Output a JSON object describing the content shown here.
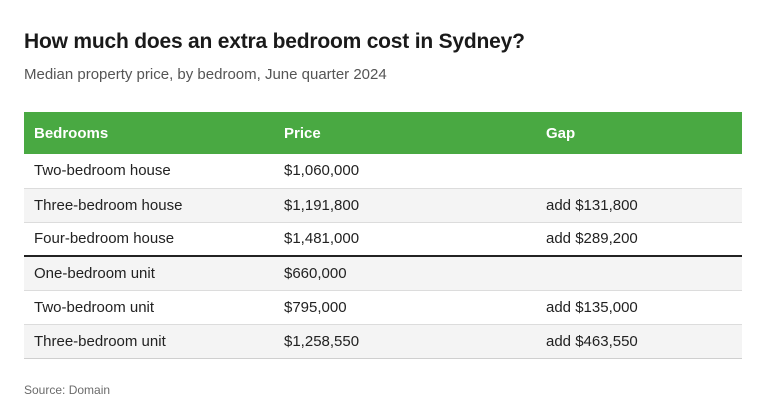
{
  "header": {
    "title": "How much does an extra bedroom cost in Sydney?",
    "subtitle": "Median property price, by bedroom, June quarter 2024"
  },
  "table": {
    "columns": [
      "Bedrooms",
      "Price",
      "Gap"
    ],
    "rows": [
      {
        "bedrooms": "Two-bedroom house",
        "price": "$1,060,000",
        "gap": ""
      },
      {
        "bedrooms": "Three-bedroom house",
        "price": "$1,191,800",
        "gap": "add $131,800"
      },
      {
        "bedrooms": "Four-bedroom house",
        "price": "$1,481,000",
        "gap": "add $289,200"
      },
      {
        "bedrooms": "One-bedroom unit",
        "price": "$660,000",
        "gap": ""
      },
      {
        "bedrooms": "Two-bedroom unit",
        "price": "$795,000",
        "gap": "add $135,000"
      },
      {
        "bedrooms": "Three-bedroom unit",
        "price": "$1,258,550",
        "gap": "add $463,550"
      }
    ]
  },
  "footer": {
    "source": "Source: Domain"
  },
  "colors": {
    "header_bg": "#49a942",
    "header_text": "#ffffff",
    "stripe": "#f4f4f4"
  }
}
